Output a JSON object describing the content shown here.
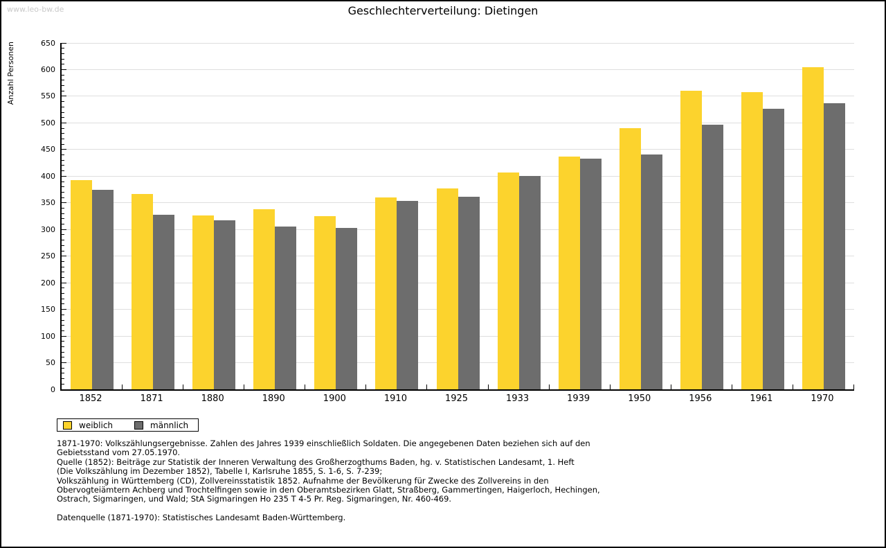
{
  "page": {
    "watermark": "www.leo-bw.de"
  },
  "chart_data": {
    "type": "bar",
    "title": "Geschlechterverteilung: Dietingen",
    "xlabel": "",
    "ylabel": "Anzahl Personen",
    "ylim": [
      0,
      650
    ],
    "ytick_step": 50,
    "ytick_minor_step": 10,
    "yticks": [
      0,
      50,
      100,
      150,
      200,
      250,
      300,
      350,
      400,
      450,
      500,
      550,
      600,
      650
    ],
    "grid": true,
    "legend_position": "bottom-left",
    "categories": [
      "1852",
      "1871",
      "1880",
      "1890",
      "1900",
      "1910",
      "1925",
      "1933",
      "1939",
      "1950",
      "1956",
      "1961",
      "1970"
    ],
    "series": [
      {
        "name": "weiblich",
        "color": "#fcd32d",
        "values": [
          393,
          366,
          326,
          338,
          325,
          360,
          377,
          407,
          437,
          490,
          560,
          558,
          604
        ]
      },
      {
        "name": "männlich",
        "color": "#6d6d6d",
        "values": [
          375,
          328,
          317,
          305,
          303,
          353,
          361,
          401,
          433,
          441,
          496,
          526,
          537
        ]
      }
    ]
  },
  "colors": {
    "gridline": "#dedede",
    "axis": "#000000",
    "watermark": "#c9c9c9",
    "background": "#ffffff"
  },
  "footer": {
    "lines": [
      "1871-1970: Volkszählungsergebnisse. Zahlen des Jahres 1939 einschließlich Soldaten. Die angegebenen Daten beziehen sich auf den",
      "Gebietsstand vom 27.05.1970.",
      "Quelle (1852): Beiträge zur Statistik der Inneren Verwaltung des Großherzogthums Baden, hg. v. Statistischen Landesamt, 1. Heft",
      "(Die Volkszählung im Dezember 1852), Tabelle I, Karlsruhe 1855, S. 1-6, S. 7-239;",
      "Volkszählung in Württemberg (CD), Zollvereinsstatistik 1852. Aufnahme der Bevölkerung für Zwecke des Zollvereins in den",
      "Obervogteiämtern Achberg und Trochtelfingen sowie in den Oberamtsbezirken Glatt, Straßberg, Gammertingen, Haigerloch, Hechingen,",
      "Ostrach, Sigmaringen, und Wald; StA Sigmaringen Ho 235 T 4-5 Pr. Reg. Sigmaringen, Nr. 460-469."
    ],
    "datasource": "Datenquelle (1871-1970): Statistisches Landesamt Baden-Württemberg."
  }
}
